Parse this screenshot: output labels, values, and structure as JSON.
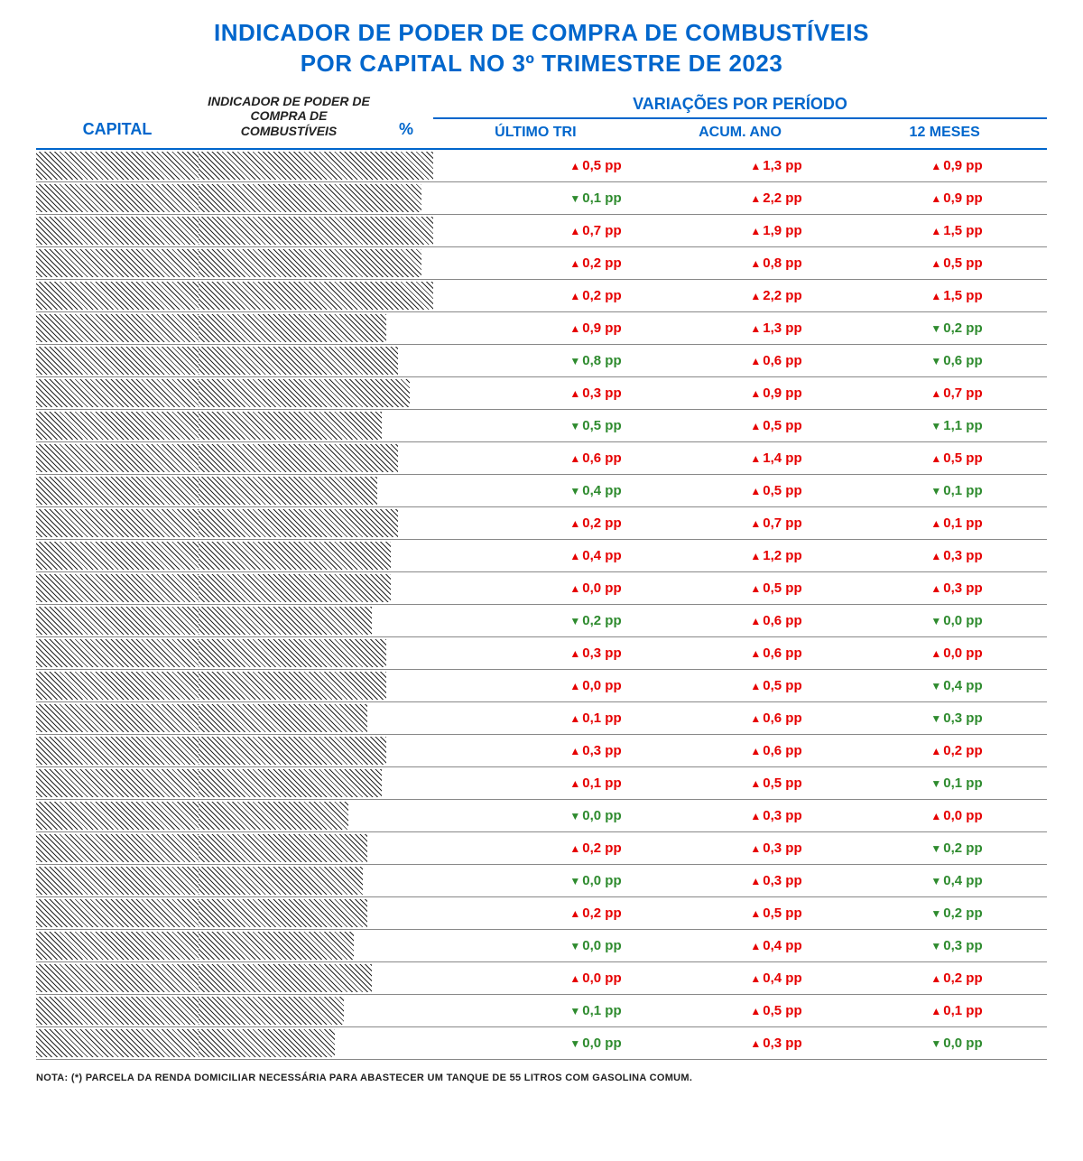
{
  "title_line1": "INDICADOR DE PODER DE COMPRA DE COMBUSTÍVEIS",
  "title_line2": "POR CAPITAL NO 3º TRIMESTRE DE 2023",
  "headers": {
    "capital": "CAPITAL",
    "indicator": "INDICADOR DE PODER DE COMPRA DE COMBUSTÍVEIS",
    "pct": "%",
    "variations_title": "VARIAÇÕES POR PERÍODO",
    "ultimo_tri": "ÚLTIMO TRI",
    "acum_ano": "ACUM. ANO",
    "doze_meses": "12 MESES"
  },
  "note": "NOTA: (*) PARCELA DA RENDA DOMICILIAR NECESSÁRIA PARA ABASTECER UM TANQUE DE 55 LITROS COM GASOLINA COMUM.",
  "max_pct": 16,
  "colors": {
    "blue": "#0066cc",
    "red": "#e60000",
    "green": "#2e8b2e",
    "text": "#222222",
    "background": "#ffffff"
  },
  "rows": [
    {
      "capital": "",
      "pct": "",
      "bar": 100,
      "ultimo": {
        "v": "0,5 pp",
        "d": "up"
      },
      "acum": {
        "v": "1,3 pp",
        "d": "up"
      },
      "doze": {
        "v": "0,9 pp",
        "d": "up"
      }
    },
    {
      "capital": "",
      "pct": "",
      "bar": 95,
      "ultimo": {
        "v": "0,1 pp",
        "d": "down"
      },
      "acum": {
        "v": "2,2 pp",
        "d": "up"
      },
      "doze": {
        "v": "0,9 pp",
        "d": "up"
      }
    },
    {
      "capital": "",
      "pct": "",
      "bar": 100,
      "ultimo": {
        "v": "0,7 pp",
        "d": "up"
      },
      "acum": {
        "v": "1,9 pp",
        "d": "up"
      },
      "doze": {
        "v": "1,5 pp",
        "d": "up"
      }
    },
    {
      "capital": "",
      "pct": "",
      "bar": 95,
      "ultimo": {
        "v": "0,2 pp",
        "d": "up"
      },
      "acum": {
        "v": "0,8 pp",
        "d": "up"
      },
      "doze": {
        "v": "0,5 pp",
        "d": "up"
      }
    },
    {
      "capital": "",
      "pct": "",
      "bar": 100,
      "ultimo": {
        "v": "0,2 pp",
        "d": "up"
      },
      "acum": {
        "v": "2,2 pp",
        "d": "up"
      },
      "doze": {
        "v": "1,5 pp",
        "d": "up"
      }
    },
    {
      "capital": "",
      "pct": "",
      "bar": 80,
      "ultimo": {
        "v": "0,9 pp",
        "d": "up"
      },
      "acum": {
        "v": "1,3 pp",
        "d": "up"
      },
      "doze": {
        "v": "0,2 pp",
        "d": "down"
      }
    },
    {
      "capital": "",
      "pct": "",
      "bar": 85,
      "ultimo": {
        "v": "0,8 pp",
        "d": "down"
      },
      "acum": {
        "v": "0,6 pp",
        "d": "up"
      },
      "doze": {
        "v": "0,6 pp",
        "d": "down"
      }
    },
    {
      "capital": "",
      "pct": "",
      "bar": 90,
      "ultimo": {
        "v": "0,3 pp",
        "d": "up"
      },
      "acum": {
        "v": "0,9 pp",
        "d": "up"
      },
      "doze": {
        "v": "0,7 pp",
        "d": "up"
      }
    },
    {
      "capital": "",
      "pct": "",
      "bar": 78,
      "ultimo": {
        "v": "0,5 pp",
        "d": "down"
      },
      "acum": {
        "v": "0,5 pp",
        "d": "up"
      },
      "doze": {
        "v": "1,1 pp",
        "d": "down"
      }
    },
    {
      "capital": "",
      "pct": "",
      "bar": 85,
      "ultimo": {
        "v": "0,6 pp",
        "d": "up"
      },
      "acum": {
        "v": "1,4 pp",
        "d": "up"
      },
      "doze": {
        "v": "0,5 pp",
        "d": "up"
      }
    },
    {
      "capital": "",
      "pct": "",
      "bar": 76,
      "ultimo": {
        "v": "0,4 pp",
        "d": "down"
      },
      "acum": {
        "v": "0,5 pp",
        "d": "up"
      },
      "doze": {
        "v": "0,1 pp",
        "d": "down"
      }
    },
    {
      "capital": "",
      "pct": "",
      "bar": 85,
      "ultimo": {
        "v": "0,2 pp",
        "d": "up"
      },
      "acum": {
        "v": "0,7 pp",
        "d": "up"
      },
      "doze": {
        "v": "0,1 pp",
        "d": "up"
      }
    },
    {
      "capital": "",
      "pct": "",
      "bar": 82,
      "ultimo": {
        "v": "0,4 pp",
        "d": "up"
      },
      "acum": {
        "v": "1,2 pp",
        "d": "up"
      },
      "doze": {
        "v": "0,3 pp",
        "d": "up"
      }
    },
    {
      "capital": "",
      "pct": "",
      "bar": 82,
      "ultimo": {
        "v": "0,0 pp",
        "d": "up"
      },
      "acum": {
        "v": "0,5 pp",
        "d": "up"
      },
      "doze": {
        "v": "0,3 pp",
        "d": "up"
      }
    },
    {
      "capital": "",
      "pct": "",
      "bar": 74,
      "ultimo": {
        "v": "0,2 pp",
        "d": "down"
      },
      "acum": {
        "v": "0,6 pp",
        "d": "up"
      },
      "doze": {
        "v": "0,0 pp",
        "d": "down"
      }
    },
    {
      "capital": "",
      "pct": "",
      "bar": 80,
      "ultimo": {
        "v": "0,3 pp",
        "d": "up"
      },
      "acum": {
        "v": "0,6 pp",
        "d": "up"
      },
      "doze": {
        "v": "0,0 pp",
        "d": "up"
      }
    },
    {
      "capital": "",
      "pct": "",
      "bar": 80,
      "ultimo": {
        "v": "0,0 pp",
        "d": "up"
      },
      "acum": {
        "v": "0,5 pp",
        "d": "up"
      },
      "doze": {
        "v": "0,4 pp",
        "d": "down"
      }
    },
    {
      "capital": "",
      "pct": "",
      "bar": 72,
      "ultimo": {
        "v": "0,1 pp",
        "d": "up"
      },
      "acum": {
        "v": "0,6 pp",
        "d": "up"
      },
      "doze": {
        "v": "0,3 pp",
        "d": "down"
      }
    },
    {
      "capital": "",
      "pct": "",
      "bar": 80,
      "ultimo": {
        "v": "0,3 pp",
        "d": "up"
      },
      "acum": {
        "v": "0,6 pp",
        "d": "up"
      },
      "doze": {
        "v": "0,2 pp",
        "d": "up"
      }
    },
    {
      "capital": "",
      "pct": "",
      "bar": 78,
      "ultimo": {
        "v": "0,1 pp",
        "d": "up"
      },
      "acum": {
        "v": "0,5 pp",
        "d": "up"
      },
      "doze": {
        "v": "0,1 pp",
        "d": "down"
      }
    },
    {
      "capital": "",
      "pct": "",
      "bar": 64,
      "ultimo": {
        "v": "0,0 pp",
        "d": "down"
      },
      "acum": {
        "v": "0,3 pp",
        "d": "up"
      },
      "doze": {
        "v": "0,0 pp",
        "d": "up"
      }
    },
    {
      "capital": "",
      "pct": "",
      "bar": 72,
      "ultimo": {
        "v": "0,2 pp",
        "d": "up"
      },
      "acum": {
        "v": "0,3 pp",
        "d": "up"
      },
      "doze": {
        "v": "0,2 pp",
        "d": "down"
      }
    },
    {
      "capital": "",
      "pct": "",
      "bar": 70,
      "ultimo": {
        "v": "0,0 pp",
        "d": "down"
      },
      "acum": {
        "v": "0,3 pp",
        "d": "up"
      },
      "doze": {
        "v": "0,4 pp",
        "d": "down"
      }
    },
    {
      "capital": "",
      "pct": "",
      "bar": 72,
      "ultimo": {
        "v": "0,2 pp",
        "d": "up"
      },
      "acum": {
        "v": "0,5 pp",
        "d": "up"
      },
      "doze": {
        "v": "0,2 pp",
        "d": "down"
      }
    },
    {
      "capital": "",
      "pct": "",
      "bar": 66,
      "ultimo": {
        "v": "0,0 pp",
        "d": "down"
      },
      "acum": {
        "v": "0,4 pp",
        "d": "up"
      },
      "doze": {
        "v": "0,3 pp",
        "d": "down"
      }
    },
    {
      "capital": "",
      "pct": "",
      "bar": 74,
      "ultimo": {
        "v": "0,0 pp",
        "d": "up"
      },
      "acum": {
        "v": "0,4 pp",
        "d": "up"
      },
      "doze": {
        "v": "0,2 pp",
        "d": "up"
      }
    },
    {
      "capital": "",
      "pct": "",
      "bar": 62,
      "ultimo": {
        "v": "0,1 pp",
        "d": "down"
      },
      "acum": {
        "v": "0,5 pp",
        "d": "up"
      },
      "doze": {
        "v": "0,1 pp",
        "d": "up"
      }
    },
    {
      "capital": "",
      "pct": "",
      "bar": 58,
      "ultimo": {
        "v": "0,0 pp",
        "d": "down"
      },
      "acum": {
        "v": "0,3 pp",
        "d": "up"
      },
      "doze": {
        "v": "0,0 pp",
        "d": "down"
      }
    }
  ]
}
